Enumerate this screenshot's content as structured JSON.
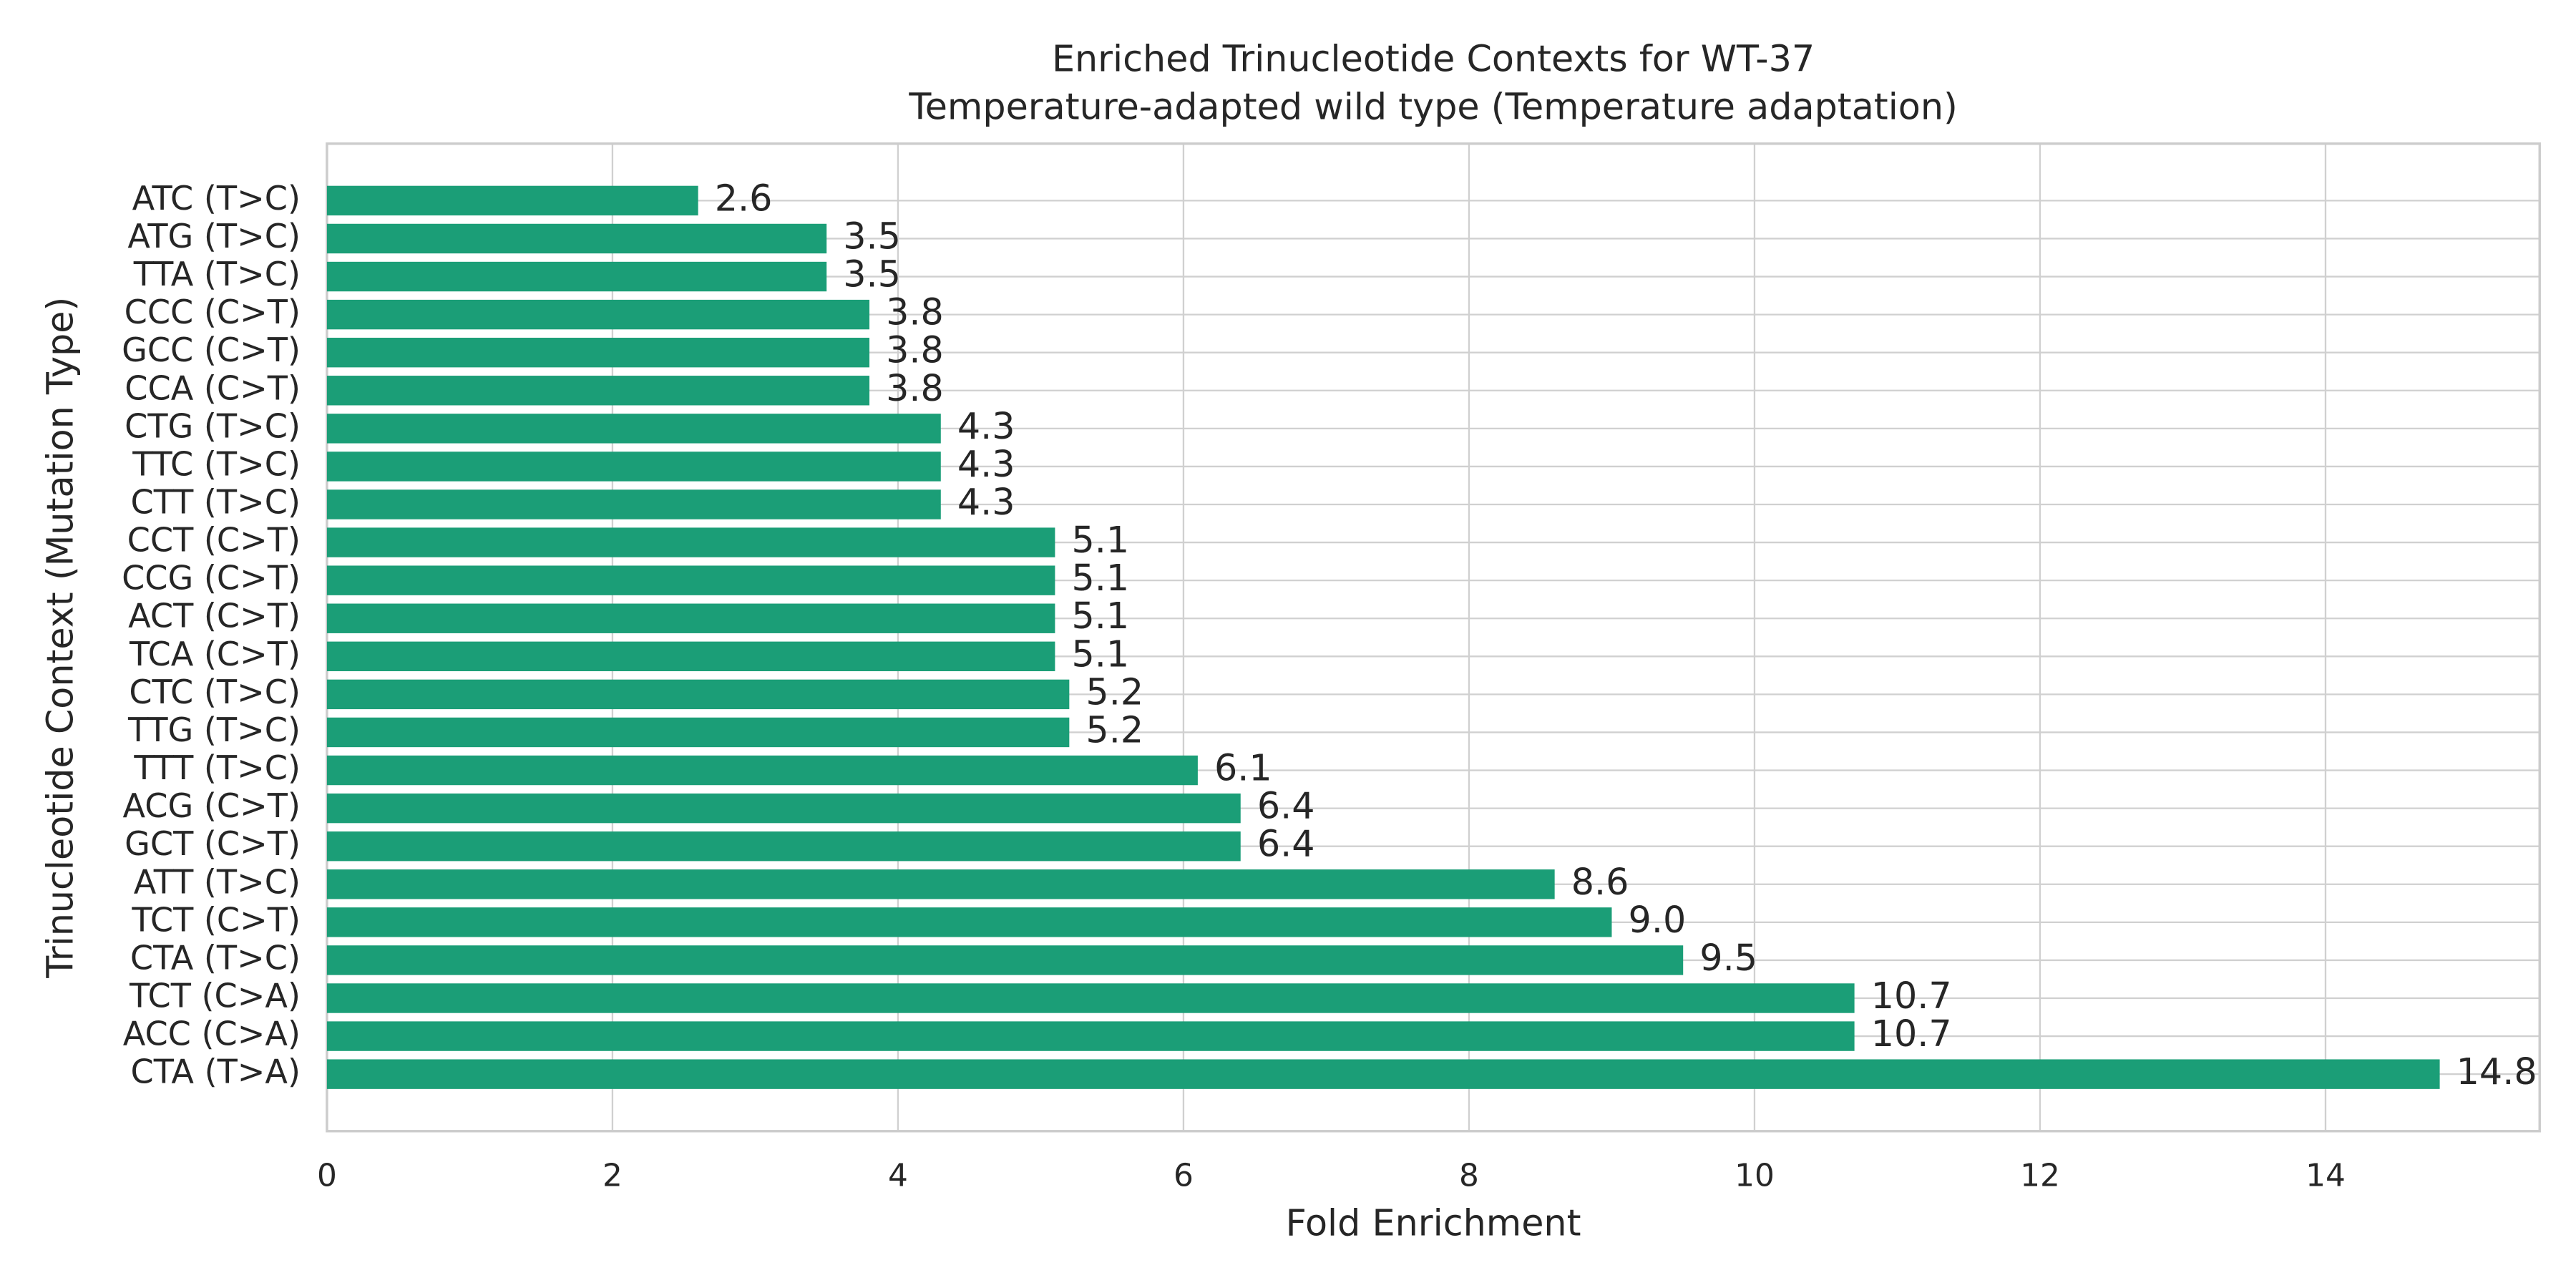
{
  "chart_data": {
    "type": "barh",
    "title": "Enriched Trinucleotide Contexts for WT-37",
    "subtitle": "Temperature-adapted wild type (Temperature adaptation)",
    "x_label": "Fold Enrichment",
    "y_label": "Trinucleotide Context (Mutation Type)",
    "categories": [
      "ATC (T>C)",
      "ATG (T>C)",
      "TTA (T>C)",
      "CCC (C>T)",
      "GCC (C>T)",
      "CCA (C>T)",
      "CTG (T>C)",
      "TTC (T>C)",
      "CTT (T>C)",
      "CCT (C>T)",
      "CCG (C>T)",
      "ACT (C>T)",
      "TCA (C>T)",
      "CTC (T>C)",
      "TTG (T>C)",
      "TTT (T>C)",
      "ACG (C>T)",
      "GCT (C>T)",
      "ATT (T>C)",
      "TCT (C>T)",
      "CTA (T>C)",
      "TCT (C>A)",
      "ACC (C>A)",
      "CTA (T>A)"
    ],
    "values": [
      2.6,
      3.5,
      3.5,
      3.8,
      3.8,
      3.8,
      4.3,
      4.3,
      4.3,
      5.1,
      5.1,
      5.1,
      5.1,
      5.2,
      5.2,
      6.1,
      6.4,
      6.4,
      8.6,
      9.0,
      9.5,
      10.7,
      10.7,
      14.8
    ],
    "value_labels": [
      "2.6",
      "3.5",
      "3.5",
      "3.8",
      "3.8",
      "3.8",
      "4.3",
      "4.3",
      "4.3",
      "5.1",
      "5.1",
      "5.1",
      "5.1",
      "5.2",
      "5.2",
      "6.1",
      "6.4",
      "6.4",
      "8.6",
      "9.0",
      "9.5",
      "10.7",
      "10.7",
      "14.8"
    ],
    "color": "#1b9e77",
    "xlim": [
      0,
      15.5
    ],
    "xticks": [
      0,
      2,
      4,
      6,
      8,
      10,
      12,
      14
    ],
    "grid": true
  }
}
